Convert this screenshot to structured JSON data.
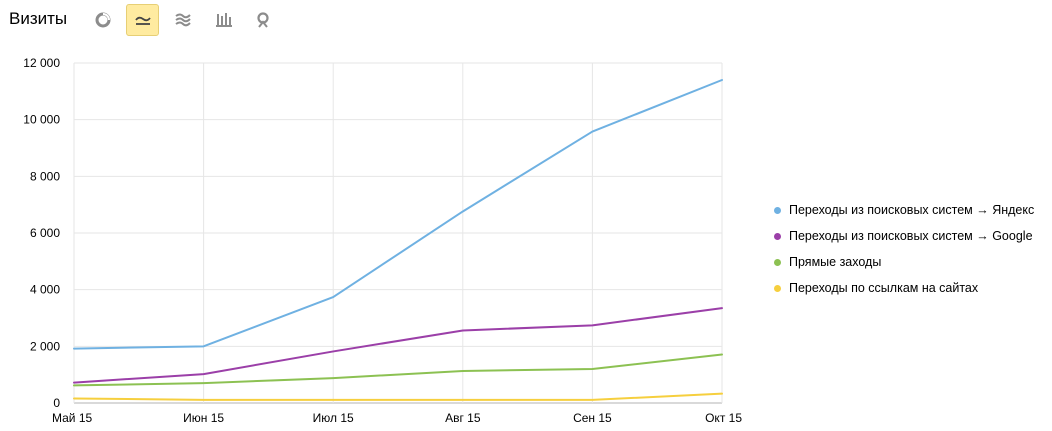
{
  "header": {
    "title": "Визиты",
    "chart_types": [
      {
        "icon": "pie-chart-icon",
        "active": false
      },
      {
        "icon": "line-chart-icon",
        "active": true
      },
      {
        "icon": "area-chart-icon",
        "active": false
      },
      {
        "icon": "bar-chart-icon",
        "active": false
      },
      {
        "icon": "map-pin-icon",
        "active": false
      }
    ]
  },
  "colors": {
    "grid": "#e6e6e6",
    "axis": "#b3b3b3",
    "active_button_bg": "#ffeba0",
    "icon": "#8c8c8c"
  },
  "chart_data": {
    "type": "line",
    "categories": [
      "Май 15",
      "Июн 15",
      "Июл 15",
      "Авг 15",
      "Сен 15",
      "Окт 15"
    ],
    "ylim": [
      0,
      12000
    ],
    "yticks": [
      0,
      2000,
      4000,
      6000,
      8000,
      10000,
      12000
    ],
    "ytick_labels": [
      "0",
      "2 000",
      "4 000",
      "6 000",
      "8 000",
      "10 000",
      "12 000"
    ],
    "grid": true,
    "legend_position": "right",
    "series": [
      {
        "name": "Переходы из поисковых систем → Яндекс",
        "color": "#6fb1e2",
        "values": [
          1920,
          2000,
          3740,
          6760,
          9580,
          11400
        ]
      },
      {
        "name": "Переходы из поисковых систем → Google",
        "color": "#9b3fa8",
        "values": [
          720,
          1020,
          1820,
          2560,
          2740,
          3350
        ]
      },
      {
        "name": "Прямые заходы",
        "color": "#8cc152",
        "values": [
          620,
          700,
          880,
          1130,
          1200,
          1710
        ]
      },
      {
        "name": "Переходы по ссылкам на сайтах",
        "color": "#f6cf3e",
        "values": [
          160,
          110,
          110,
          110,
          110,
          330
        ]
      }
    ]
  }
}
